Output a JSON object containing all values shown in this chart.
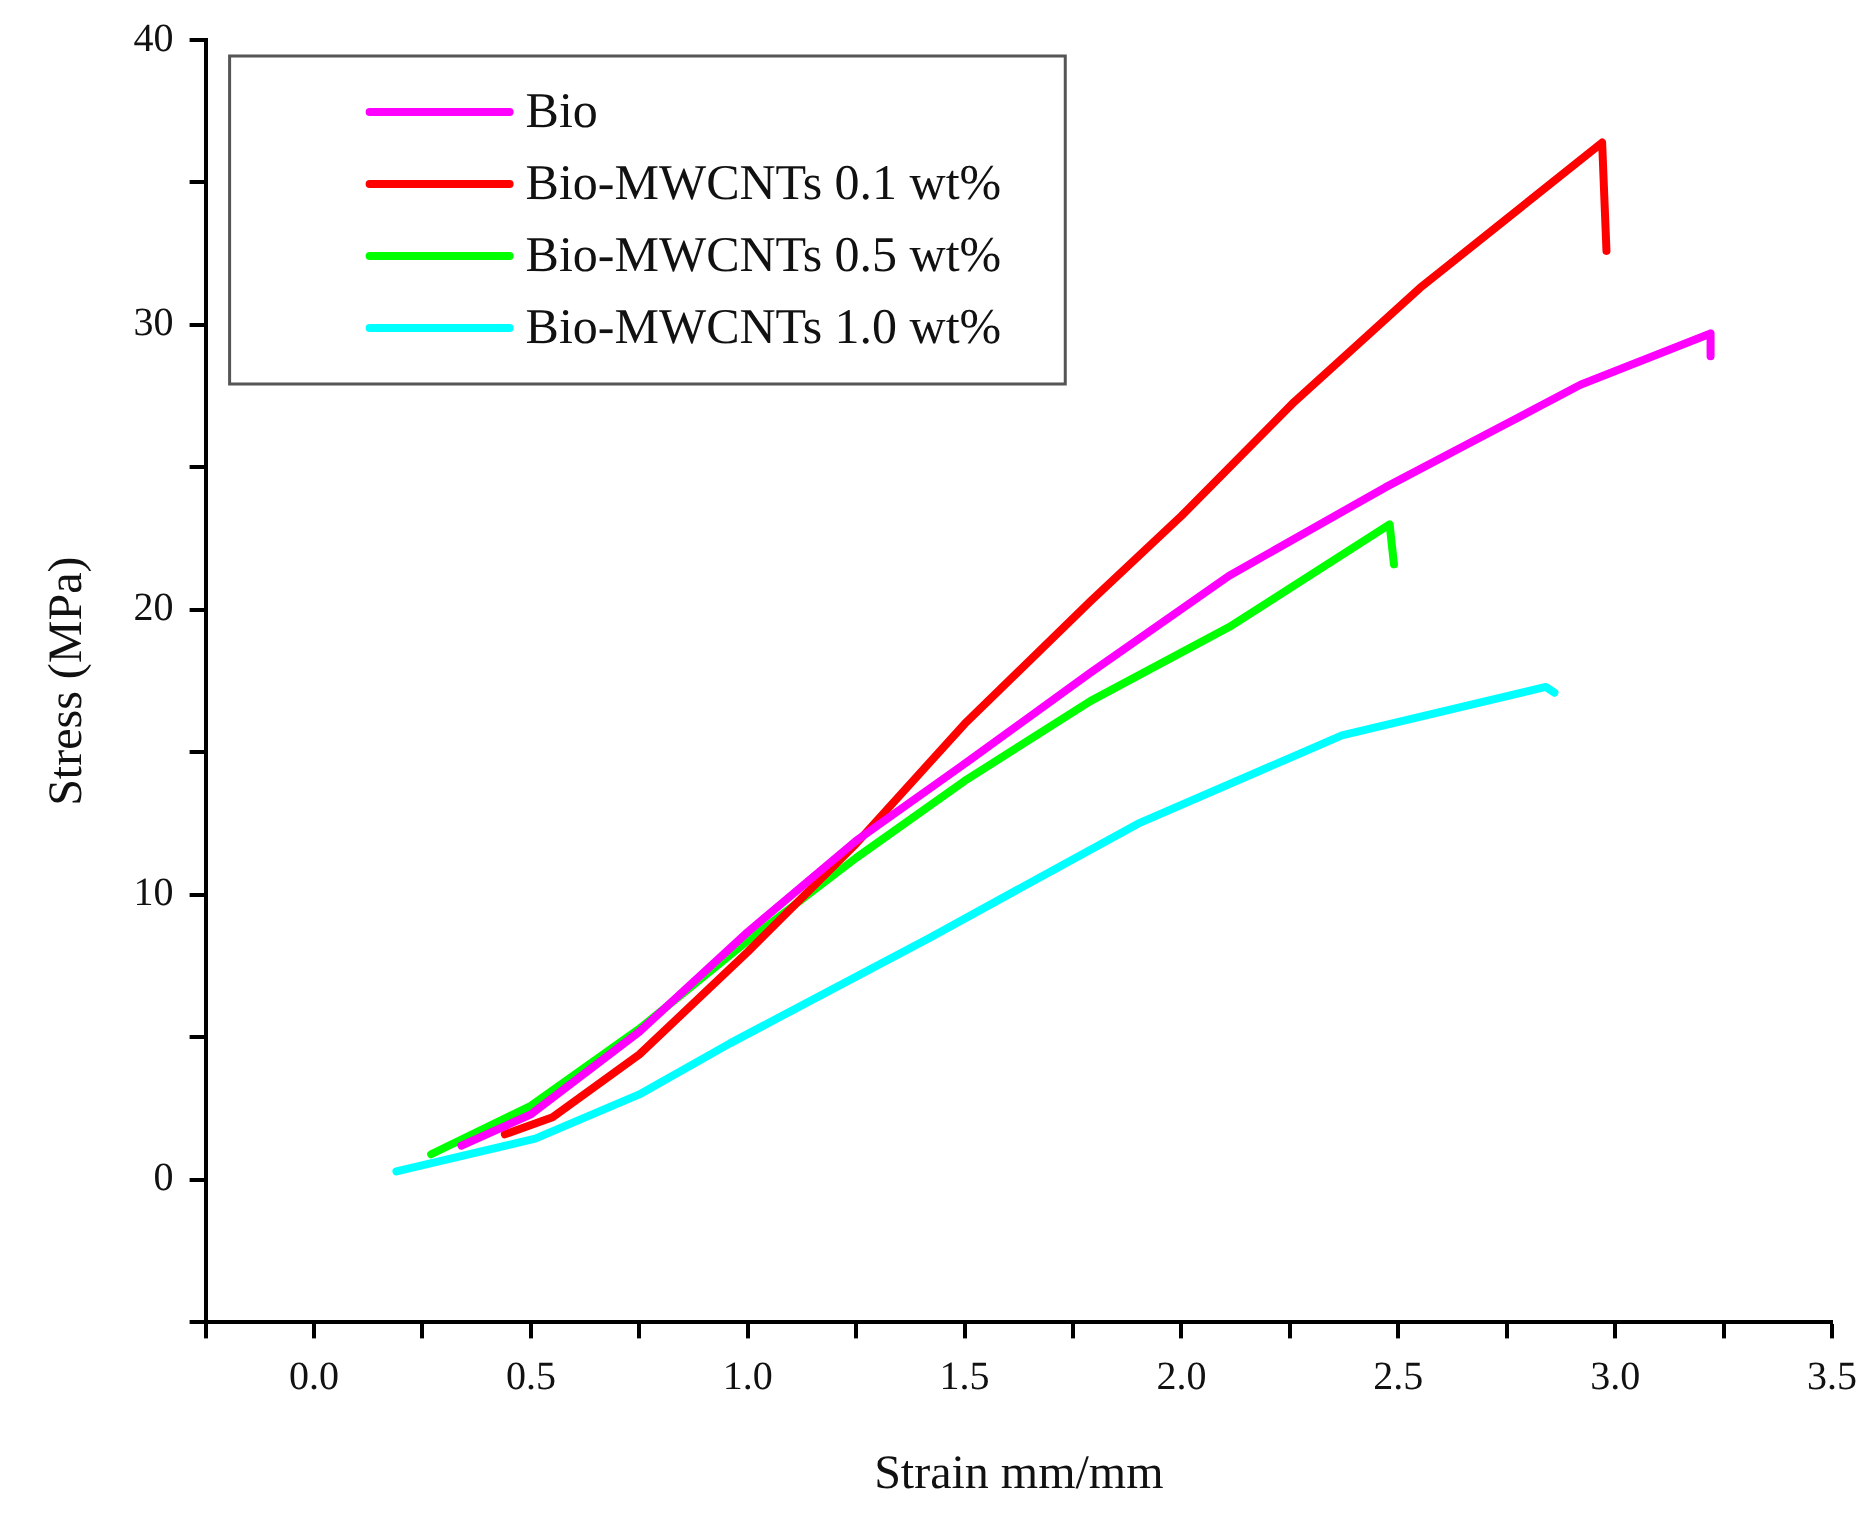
{
  "chart_data": {
    "type": "line",
    "xlabel": "Strain mm/mm",
    "ylabel": "Stress (MPa)",
    "xlim": [
      -0.25,
      3.5
    ],
    "xticks": [
      {
        "value": -0.25,
        "label": null
      },
      {
        "value": 0,
        "label": "0.0"
      },
      {
        "value": 0.25,
        "label": null
      },
      0.5,
      {
        "value": 0.75,
        "label": null
      },
      {
        "value": 1,
        "label": "1.0"
      },
      {
        "value": 1.25,
        "label": null
      },
      1.5,
      {
        "value": 1.75,
        "label": null
      },
      {
        "value": 2,
        "label": "2.0"
      },
      {
        "value": 2.25,
        "label": null
      },
      2.5,
      {
        "value": 2.75,
        "label": null
      },
      {
        "value": 3,
        "label": "3.0"
      },
      {
        "value": 3.25,
        "label": null
      },
      3.5
    ],
    "ylim": [
      -5,
      40
    ],
    "yticks": [
      {
        "value": -5,
        "label": null
      },
      0,
      {
        "value": 5,
        "label": null
      },
      10,
      {
        "value": 15,
        "label": null
      },
      20,
      {
        "value": 25,
        "label": null
      },
      30,
      {
        "value": 35,
        "label": null
      },
      40
    ],
    "grid": false,
    "legend": "top left",
    "marker": "none",
    "line_style": "solid",
    "series": [
      {
        "name": "Bio",
        "color": "#ff00ff",
        "x": [
          0.34,
          0.5,
          0.75,
          1.0,
          1.25,
          1.5,
          1.79,
          2.11,
          2.47,
          2.67,
          2.92,
          3.22,
          3.22
        ],
        "values": [
          1.2,
          2.3,
          5.2,
          8.7,
          11.9,
          14.6,
          17.8,
          21.2,
          24.3,
          25.9,
          27.9,
          29.7,
          28.9
        ]
      },
      {
        "name": "Bio-MWCNTs 0.1 wt%",
        "color": "#ff0000",
        "x": [
          0.44,
          0.55,
          0.75,
          1.0,
          1.25,
          1.5,
          1.79,
          2.0,
          2.26,
          2.55,
          2.97,
          2.98
        ],
        "values": [
          1.6,
          2.2,
          4.4,
          8.0,
          11.8,
          16.0,
          20.3,
          23.3,
          27.3,
          31.3,
          36.4,
          32.6
        ]
      },
      {
        "name": "Bio-MWCNTs 0.5 wt%",
        "color": "#00ff00",
        "x": [
          0.27,
          0.5,
          0.75,
          1.0,
          1.25,
          1.5,
          1.79,
          2.11,
          2.48,
          2.49
        ],
        "values": [
          0.9,
          2.6,
          5.3,
          8.4,
          11.3,
          14.0,
          16.8,
          19.4,
          23.0,
          21.6
        ]
      },
      {
        "name": "Bio-MWCNTs 1.0 wt%",
        "color": "#00ffff",
        "x": [
          0.19,
          0.51,
          0.75,
          0.96,
          1.42,
          1.9,
          2.37,
          2.84,
          2.86
        ],
        "values": [
          0.3,
          1.45,
          3.0,
          4.8,
          8.5,
          12.5,
          15.6,
          17.3,
          17.1
        ]
      }
    ]
  }
}
